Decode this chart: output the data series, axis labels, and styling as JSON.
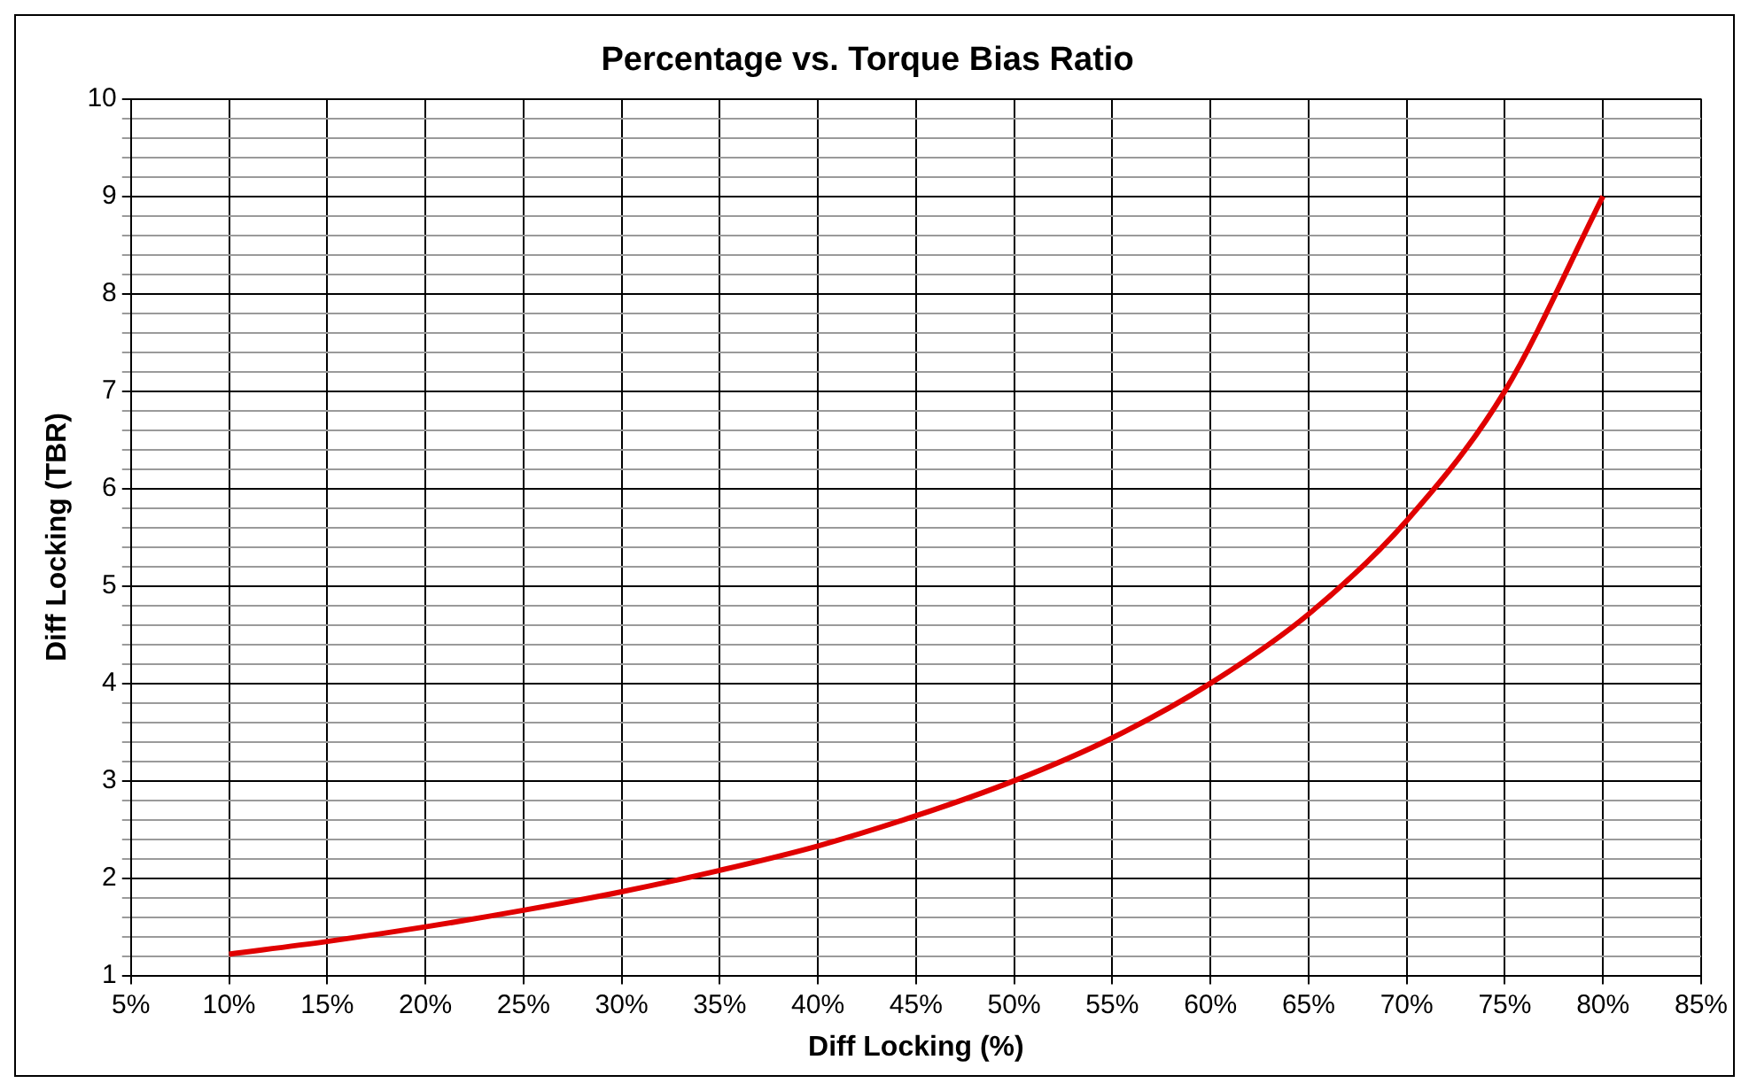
{
  "chart_data": {
    "type": "line",
    "title": "Percentage vs. Torque Bias Ratio",
    "xlabel": "Diff Locking (%)",
    "ylabel": "Diff Locking (TBR)",
    "x": [
      10,
      15,
      20,
      25,
      30,
      35,
      40,
      45,
      50,
      55,
      60,
      65,
      70,
      75,
      80
    ],
    "series": [
      {
        "color": "#e00000",
        "values": [
          1.22,
          1.35,
          1.5,
          1.67,
          1.86,
          2.08,
          2.33,
          2.64,
          3.0,
          3.44,
          4.0,
          4.71,
          5.67,
          7.0,
          9.0
        ]
      }
    ],
    "xlim": [
      5,
      85
    ],
    "xticks": [
      {
        "value": 5,
        "label": "5%"
      },
      {
        "value": 10,
        "label": "10%"
      },
      {
        "value": 15,
        "label": "15%"
      },
      {
        "value": 20,
        "label": "20%"
      },
      {
        "value": 25,
        "label": "25%"
      },
      {
        "value": 30,
        "label": "30%"
      },
      {
        "value": 35,
        "label": "35%"
      },
      {
        "value": 40,
        "label": "40%"
      },
      {
        "value": 45,
        "label": "45%"
      },
      {
        "value": 50,
        "label": "50%"
      },
      {
        "value": 55,
        "label": "55%"
      },
      {
        "value": 60,
        "label": "60%"
      },
      {
        "value": 65,
        "label": "65%"
      },
      {
        "value": 70,
        "label": "70%"
      },
      {
        "value": 75,
        "label": "75%"
      },
      {
        "value": 80,
        "label": "80%"
      },
      {
        "value": 85,
        "label": "85%"
      }
    ],
    "ylim": [
      1,
      10
    ],
    "yticks": [
      1,
      {
        "value": 1.2,
        "label": null
      },
      {
        "value": 1.4,
        "label": null
      },
      {
        "value": 1.6,
        "label": null
      },
      {
        "value": 1.8,
        "label": null
      },
      2,
      {
        "value": 2.2,
        "label": null
      },
      {
        "value": 2.4,
        "label": null
      },
      {
        "value": 2.6,
        "label": null
      },
      {
        "value": 2.8,
        "label": null
      },
      3,
      {
        "value": 3.2,
        "label": null
      },
      {
        "value": 3.4,
        "label": null
      },
      {
        "value": 3.6,
        "label": null
      },
      {
        "value": 3.8,
        "label": null
      },
      4,
      {
        "value": 4.2,
        "label": null
      },
      {
        "value": 4.4,
        "label": null
      },
      {
        "value": 4.6,
        "label": null
      },
      {
        "value": 4.8,
        "label": null
      },
      5,
      {
        "value": 5.2,
        "label": null
      },
      {
        "value": 5.4,
        "label": null
      },
      {
        "value": 5.6,
        "label": null
      },
      {
        "value": 5.8,
        "label": null
      },
      6,
      {
        "value": 6.2,
        "label": null
      },
      {
        "value": 6.4,
        "label": null
      },
      {
        "value": 6.6,
        "label": null
      },
      {
        "value": 6.8,
        "label": null
      },
      7,
      {
        "value": 7.2,
        "label": null
      },
      {
        "value": 7.4,
        "label": null
      },
      {
        "value": 7.6,
        "label": null
      },
      {
        "value": 7.8,
        "label": null
      },
      8,
      {
        "value": 8.2,
        "label": null
      },
      {
        "value": 8.4,
        "label": null
      },
      {
        "value": 8.6,
        "label": null
      },
      {
        "value": 8.8,
        "label": null
      },
      9,
      {
        "value": 9.2,
        "label": null
      },
      {
        "value": 9.4,
        "label": null
      },
      {
        "value": 9.6,
        "label": null
      },
      {
        "value": 9.8,
        "label": null
      },
      10
    ],
    "grid": true,
    "legend": false,
    "marker": "none",
    "line_style": "solid"
  }
}
